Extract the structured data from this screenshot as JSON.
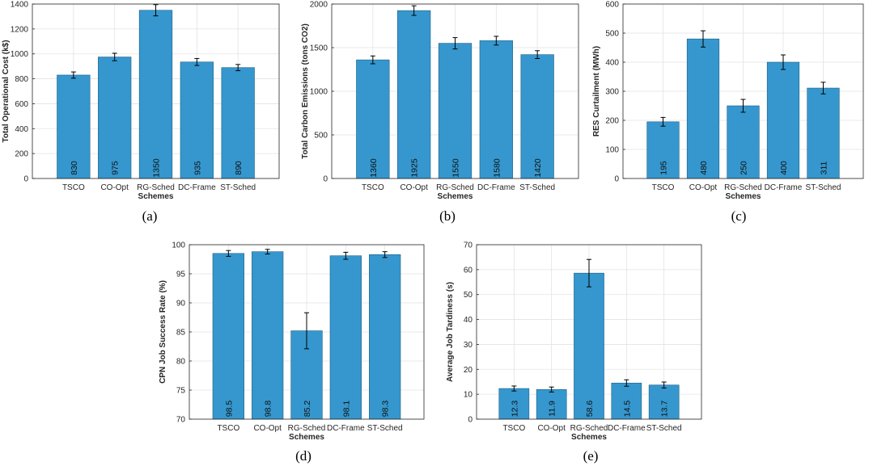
{
  "colors": {
    "bar": "#3597CE",
    "bar_edge": "#1F5F86",
    "error": "#000000",
    "grid": "#e3e3e3",
    "axis": "#262626"
  },
  "chart_data": [
    {
      "panel": "(a)",
      "type": "bar",
      "xlabel": "Schemes",
      "ylabel": "Total Operational Cost (k$)",
      "categories": [
        "TSCO",
        "CO-Opt",
        "RG-Sched",
        "DC-Frame",
        "ST-Sched"
      ],
      "values": [
        830,
        975,
        1350,
        935,
        890
      ],
      "value_labels": [
        "830",
        "975",
        "1350",
        "935",
        "890"
      ],
      "errors": [
        25,
        30,
        45,
        28,
        25
      ],
      "ylim": [
        0,
        1400
      ],
      "yticks": [
        0,
        200,
        400,
        600,
        800,
        1000,
        1200,
        1400
      ],
      "grid": true
    },
    {
      "panel": "(b)",
      "type": "bar",
      "xlabel": "Schemes",
      "ylabel": "Total Carbon Emissions (tons CO2)",
      "categories": [
        "TSCO",
        "CO-Opt",
        "RG-Sched",
        "DC-Frame",
        "ST-Sched"
      ],
      "values": [
        1360,
        1925,
        1550,
        1580,
        1420
      ],
      "value_labels": [
        "1360",
        "1925",
        "1550",
        "1580",
        "1420"
      ],
      "errors": [
        45,
        55,
        65,
        50,
        45
      ],
      "ylim": [
        0,
        2000
      ],
      "yticks": [
        0,
        500,
        1000,
        1500,
        2000
      ],
      "grid": true
    },
    {
      "panel": "(c)",
      "type": "bar",
      "xlabel": "Schemes",
      "ylabel": "RES Curtailment (MWh)",
      "categories": [
        "TSCO",
        "CO-Opt",
        "RG-Sched",
        "DC-Frame",
        "ST-Sched"
      ],
      "values": [
        195,
        480,
        250,
        400,
        311
      ],
      "value_labels": [
        "195",
        "480",
        "250",
        "400",
        "311"
      ],
      "errors": [
        15,
        28,
        22,
        25,
        20
      ],
      "ylim": [
        0,
        600
      ],
      "yticks": [
        0,
        100,
        200,
        300,
        400,
        500,
        600
      ],
      "grid": true
    },
    {
      "panel": "(d)",
      "type": "bar",
      "xlabel": "Schemes",
      "ylabel": "CPN Job Success Rate (%)",
      "categories": [
        "TSCO",
        "CO-Opt",
        "RG-Sched",
        "DC-Frame",
        "ST-Sched"
      ],
      "values": [
        98.5,
        98.8,
        85.2,
        98.1,
        98.3
      ],
      "value_labels": [
        "98.5",
        "98.8",
        "85.2",
        "98.1",
        "98.3"
      ],
      "errors": [
        0.5,
        0.4,
        3.1,
        0.6,
        0.5
      ],
      "ylim": [
        70,
        100
      ],
      "yticks": [
        70,
        75,
        80,
        85,
        90,
        95,
        100
      ],
      "grid": true
    },
    {
      "panel": "(e)",
      "type": "bar",
      "xlabel": "Schemes",
      "ylabel": "Average Job Tardiness (s)",
      "categories": [
        "TSCO",
        "CO-Opt",
        "RG-Sched",
        "DC-Frame",
        "ST-Sched"
      ],
      "values": [
        12.3,
        11.9,
        58.6,
        14.5,
        13.7
      ],
      "value_labels": [
        "12.3",
        "11.9",
        "58.6",
        "14.5",
        "13.7"
      ],
      "errors": [
        1.0,
        1.0,
        5.5,
        1.3,
        1.2
      ],
      "ylim": [
        0,
        70
      ],
      "yticks": [
        0,
        10,
        20,
        30,
        40,
        50,
        60,
        70
      ],
      "grid": true
    }
  ]
}
